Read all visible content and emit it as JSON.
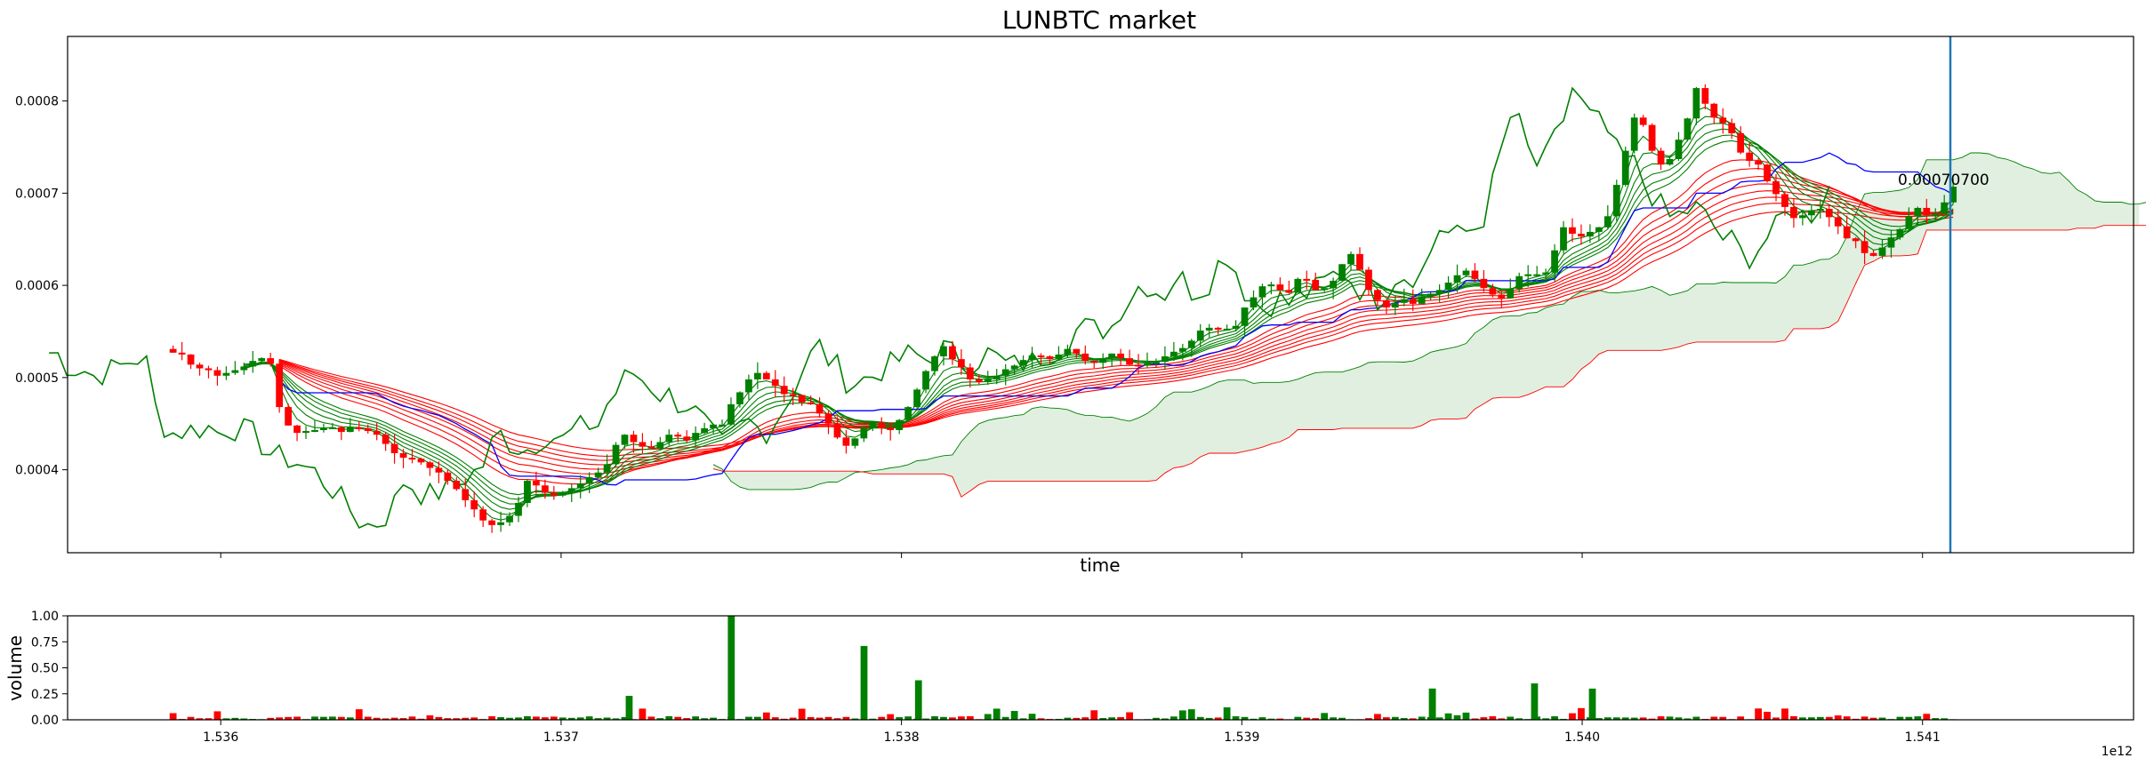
{
  "chart_data": [
    {
      "type": "candlestick",
      "title": "LUNBTC market",
      "xlabel": "time",
      "ylabel": "",
      "x_range": [
        1.53555,
        1.54162
      ],
      "ylim": [
        0.00031,
        0.00087
      ],
      "yticks": [
        0.0004,
        0.0005,
        0.0006,
        0.0007,
        0.0008
      ],
      "ytick_labels": [
        "0.0004",
        "0.0005",
        "0.0006",
        "0.0007",
        "0.0008"
      ],
      "xticks": [
        1.536,
        1.537,
        1.538,
        1.539,
        1.54,
        1.541
      ],
      "candles_close": [
        0.000527,
        0.000525,
        0.000514,
        0.00051,
        0.000508,
        0.000502,
        0.000505,
        0.000508,
        0.000512,
        0.000518,
        0.000521,
        0.000515,
        0.000468,
        0.000448,
        0.00044,
        0.000442,
        0.000443,
        0.000445,
        0.000446,
        0.000441,
        0.000446,
        0.000445,
        0.000442,
        0.000438,
        0.000428,
        0.000418,
        0.000413,
        0.000412,
        0.000408,
        0.000402,
        0.000397,
        0.000388,
        0.000379,
        0.000367,
        0.000357,
        0.000345,
        0.00034,
        0.000343,
        0.00035,
        0.000364,
        0.000388,
        0.000383,
        0.000375,
        0.000372,
        0.000376,
        0.00038,
        0.000385,
        0.000392,
        0.000397,
        0.000406,
        0.000427,
        0.000438,
        0.00043,
        0.000425,
        0.000423,
        0.00043,
        0.000438,
        0.000436,
        0.000432,
        0.00044,
        0.000445,
        0.000449,
        0.000449,
        0.000471,
        0.000484,
        0.000498,
        0.000505,
        0.000498,
        0.000491,
        0.000482,
        0.000481,
        0.000473,
        0.000471,
        0.000461,
        0.00045,
        0.000435,
        0.000426,
        0.000434,
        0.000445,
        0.000451,
        0.000445,
        0.000443,
        0.000454,
        0.000468,
        0.000487,
        0.000507,
        0.000523,
        0.000534,
        0.00052,
        0.000511,
        0.000498,
        0.000495,
        0.000498,
        0.000502,
        0.000509,
        0.000513,
        0.000519,
        0.000524,
        0.000523,
        0.00052,
        0.000525,
        0.000531,
        0.000526,
        0.000518,
        0.000516,
        0.000521,
        0.000526,
        0.000521,
        0.000514,
        0.000513,
        0.000516,
        0.000517,
        0.000523,
        0.000528,
        0.000532,
        0.00054,
        0.000551,
        0.000554,
        0.000552,
        0.000553,
        0.000556,
        0.000576,
        0.000587,
        0.000599,
        0.000601,
        0.000595,
        0.000592,
        0.000607,
        0.000606,
        0.000595,
        0.000597,
        0.000605,
        0.000623,
        0.000634,
        0.000617,
        0.000595,
        0.000584,
        0.000576,
        0.000581,
        0.000585,
        0.00058,
        0.000588,
        0.000591,
        0.000595,
        0.000603,
        0.000611,
        0.000616,
        0.000607,
        0.000597,
        0.00059,
        0.000586,
        0.000596,
        0.00061,
        0.000612,
        0.000612,
        0.000614,
        0.000638,
        0.000663,
        0.000656,
        0.000653,
        0.000658,
        0.000663,
        0.000675,
        0.000709,
        0.000746,
        0.000782,
        0.000774,
        0.000746,
        0.000731,
        0.000737,
        0.000758,
        0.000781,
        0.000814,
        0.000797,
        0.000782,
        0.000776,
        0.000765,
        0.000744,
        0.000735,
        0.000731,
        0.000713,
        0.000699,
        0.000685,
        0.000673,
        0.000676,
        0.000681,
        0.000683,
        0.000674,
        0.000664,
        0.000651,
        0.000648,
        0.000635,
        0.000632,
        0.000641,
        0.000652,
        0.000661,
        0.000675,
        0.000684,
        0.000676,
        0.000678,
        0.00069,
        0.000707
      ],
      "indicator_lines": [
        {
          "color": "#0000ff",
          "meaning": "kijun-like stepped line"
        },
        {
          "color": "#ff0000",
          "meaning": "slow moving averages (ribbon)"
        },
        {
          "color": "#008000",
          "meaning": "fast moving averages (ribbon) and lagging span"
        }
      ],
      "cloud_color": "#d5ead5",
      "vertical_marker_color": "#1f77b4",
      "last_price_annotation": "0.00070700",
      "candle_up_color": "#008000",
      "candle_down_color": "#ff0000"
    },
    {
      "type": "bar",
      "ylabel": "volume",
      "ylim": [
        0,
        1.0
      ],
      "yticks": [
        0,
        0.25,
        0.5,
        0.75,
        1.0
      ],
      "ytick_labels": [
        "0.00",
        "0.25",
        "0.50",
        "0.75",
        "1.00"
      ],
      "xticks": [
        1.536,
        1.537,
        1.538,
        1.539,
        1.54,
        1.541
      ],
      "xtick_labels": [
        "1.536",
        "1.537",
        "1.538",
        "1.539",
        "1.540",
        "1.541"
      ],
      "offset_label": "1e12",
      "spikes": [
        {
          "x": 1.5375,
          "value": 1.0,
          "color": "#008000"
        },
        {
          "x": 1.53789,
          "value": 0.71,
          "color": "#008000"
        },
        {
          "x": 1.53956,
          "value": 0.3,
          "color": "#008000"
        },
        {
          "x": 1.53986,
          "value": 0.35,
          "color": "#008000"
        },
        {
          "x": 1.54003,
          "value": 0.3,
          "color": "#008000"
        },
        {
          "x": 1.5372,
          "value": 0.23,
          "color": "#008000"
        },
        {
          "x": 1.53805,
          "value": 0.38,
          "color": "#008000"
        },
        {
          "x": 1.53956,
          "value": 0.3,
          "color": "#008000"
        }
      ],
      "bar_color_up": "#008000",
      "bar_color_down": "#ff0000"
    }
  ]
}
